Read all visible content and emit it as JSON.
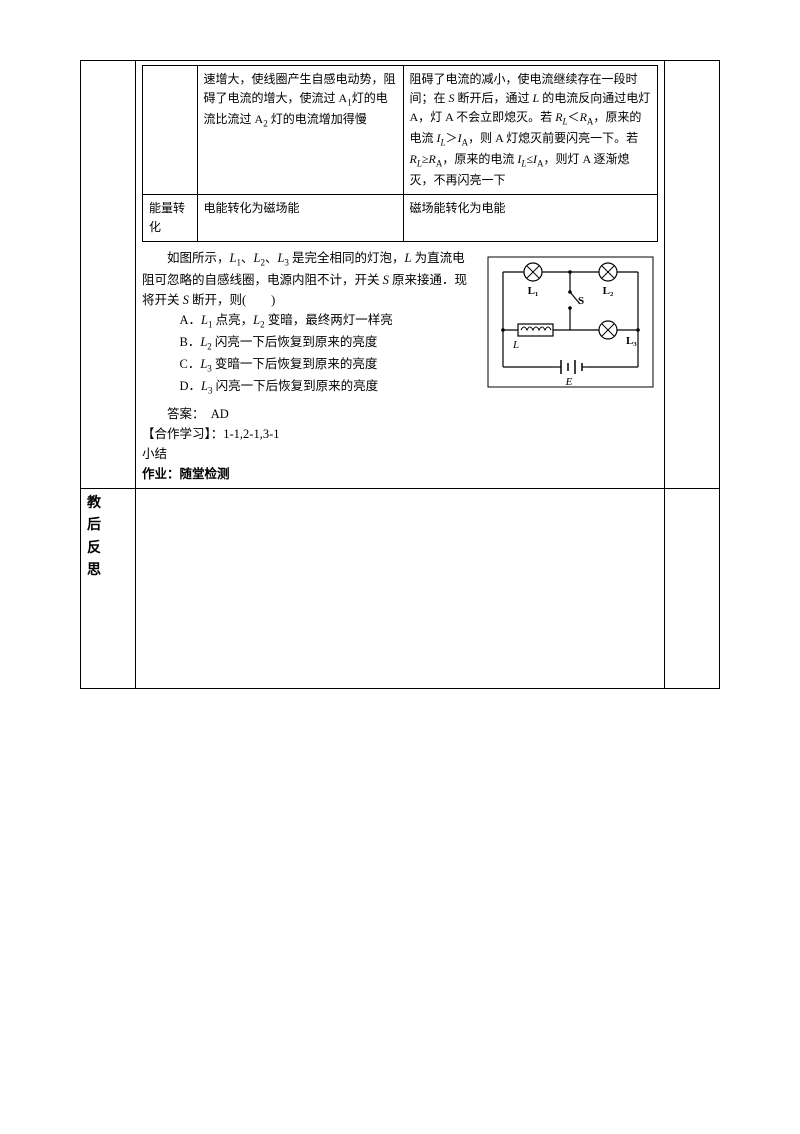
{
  "innerTable": {
    "row1": {
      "col1": "",
      "col2": "速增大，使线圈产生自感电动势，阻碍了电流的增大，使流过 A<sub>1</sub>灯的电流比流过 A<sub>2</sub> 灯的电流增加得慢",
      "col3": "阻碍了电流的减小，使电流继续存在一段时间；在 <span class='italic'>S</span> 断开后，通过 <span class='italic'>L</span> 的电流反向通过电灯 A，灯 A 不会立即熄灭。若 <span class='italic'>R<sub>L</sub></span>＜<span class='italic'>R</span><sub>A</sub>，原来的电流 <span class='italic'>I<sub>L</sub></span>＞<span class='italic'>I</span><sub>A</sub>，则 A 灯熄灭前要闪亮一下。若 <span class='italic'>R<sub>L</sub></span>≥<span class='italic'>R</span><sub>A</sub>，原来的电流 <span class='italic'>I<sub>L</sub></span>≤<span class='italic'>I</span><sub>A</sub>，则灯 A 逐渐熄灭，不再闪亮一下"
    },
    "row2": {
      "col1": "能量转化",
      "col2": "电能转化为磁场能",
      "col3": "磁场能转化为电能"
    }
  },
  "question": {
    "intro": "如图所示，<span class='italic'>L</span><sub>1</sub>、<span class='italic'>L</span><sub>2</sub>、<span class='italic'>L</span><sub>3</sub> 是完全相同的灯泡，<span class='italic'>L</span> 为直流电阻可忽略的自感线圈，电源内阻不计，开关 <span class='italic'>S</span> 原来接通．现将开关 <span class='italic'>S</span> 断开，则(　　)",
    "optA": "A．<span class='italic'>L</span><sub>1</sub> 点亮，<span class='italic'>L</span><sub>2</sub> 变暗，最终两灯一样亮",
    "optB": "B．<span class='italic'>L</span><sub>2</sub> 闪亮一下后恢复到原来的亮度",
    "optC": "C．<span class='italic'>L</span><sub>3</sub> 变暗一下后恢复到原来的亮度",
    "optD": "D．<span class='italic'>L</span><sub>3</sub> 闪亮一下后恢复到原来的亮度"
  },
  "answer": "答案：　AD",
  "coop": "【合作学习】：1-1,2-1,3-1",
  "summary": "小结",
  "homework": "作业：随堂检测",
  "reflectLabel": "教 后<br>反 思",
  "circuit": {
    "labels": {
      "L1": "L₁",
      "L2": "L₂",
      "L3": "L₃",
      "L": "L",
      "S": "S",
      "E": "E"
    }
  }
}
